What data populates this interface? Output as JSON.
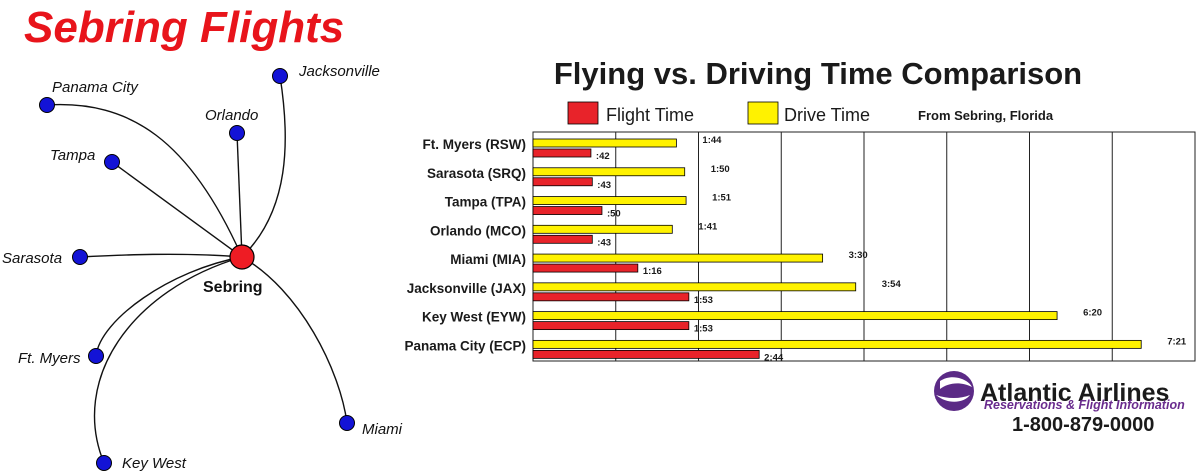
{
  "map": {
    "title": "Sebring Flights",
    "hub": "Sebring",
    "cities": [
      {
        "id": "panama-city",
        "label": "Panama City"
      },
      {
        "id": "jacksonville",
        "label": "Jacksonville"
      },
      {
        "id": "orlando",
        "label": "Orlando"
      },
      {
        "id": "tampa",
        "label": "Tampa"
      },
      {
        "id": "sarasota",
        "label": "Sarasota"
      },
      {
        "id": "ft-myers",
        "label": "Ft. Myers"
      },
      {
        "id": "key-west",
        "label": "Key West"
      },
      {
        "id": "miami",
        "label": "Miami"
      }
    ],
    "colors": {
      "hub": "#ee1c24",
      "city": "#1313d6",
      "title": "#e8141b"
    }
  },
  "chart_data": {
    "type": "bar",
    "orientation": "horizontal",
    "title": "Flying vs. Driving Time Comparison",
    "subtitle": "From Sebring, Florida",
    "categories": [
      "Ft. Myers (RSW)",
      "Sarasota (SRQ)",
      "Tampa (TPA)",
      "Orlando (MCO)",
      "Miami (MIA)",
      "Jacksonville (JAX)",
      "Key West (EYW)",
      "Panama City (ECP)"
    ],
    "series": [
      {
        "name": "Drive Time",
        "color": "#fff200",
        "values": [
          104,
          110,
          111,
          101,
          210,
          234,
          380,
          441
        ],
        "labels": [
          "1:44",
          "1:50",
          "1:51",
          "1:41",
          "3:30",
          "3:54",
          "6:20",
          "7:21"
        ]
      },
      {
        "name": "Flight Time",
        "color": "#e8232a",
        "values": [
          42,
          43,
          50,
          43,
          76,
          113,
          113,
          164
        ],
        "labels": [
          ":42",
          ":43",
          ":50",
          ":43",
          "1:16",
          "1:53",
          "1:53",
          "2:44"
        ]
      }
    ],
    "xlim": [
      0,
      480
    ],
    "grid": true,
    "legend_position": "top"
  },
  "airline": {
    "name": "Atlantic Airlines",
    "tagline": "Reservations & Flight Information",
    "phone": "1-800-879-0000",
    "logo_icon": "swoosh-logo-icon",
    "logo_color": "#5b2a86"
  }
}
